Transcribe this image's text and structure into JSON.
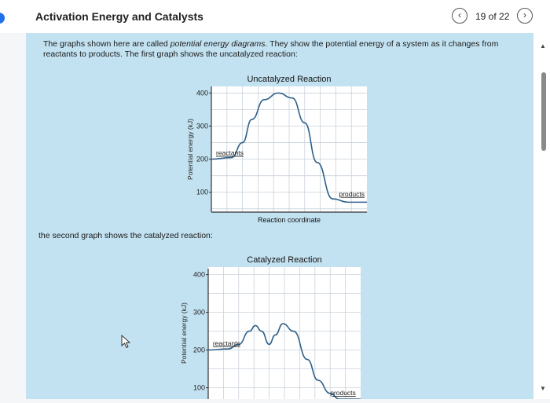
{
  "header": {
    "title": "Activation Energy and Catalysts",
    "page_counter": "19 of 22",
    "prev_icon": "chevron-left-icon",
    "next_icon": "chevron-right-icon"
  },
  "content": {
    "intro_prefix": "The graphs shown here are called ",
    "intro_em": "potential energy diagrams",
    "intro_suffix": ". They show the potential energy of a system as it changes from reactants to products. The first graph shows the uncatalyzed reaction:",
    "second_text": "the second graph shows the catalyzed reaction:"
  },
  "chart_data": [
    {
      "type": "line",
      "title": "Uncatalyzed Reaction",
      "ylabel": "Potential energy (kJ)",
      "xlabel": "Reaction coordinate",
      "y_ticks": [
        100,
        200,
        300,
        400
      ],
      "ylim": [
        40,
        420
      ],
      "xlim": [
        0,
        10
      ],
      "grid": true,
      "line_color": "#2e5f8a",
      "series": [
        {
          "x": [
            0.0,
            1.3,
            2.0,
            2.6,
            3.4,
            4.3,
            5.2,
            6.0,
            6.8,
            7.8,
            8.8,
            10.0
          ],
          "y": [
            200,
            205,
            250,
            320,
            380,
            400,
            385,
            310,
            190,
            80,
            70,
            70
          ]
        }
      ],
      "annotations": [
        {
          "text": "reactants",
          "x": 0.3,
          "y": 212
        },
        {
          "text": "products",
          "x": 8.2,
          "y": 88
        }
      ]
    },
    {
      "type": "line",
      "title": "Catalyzed Reaction",
      "ylabel": "Potential energy (kJ)",
      "xlabel": "",
      "y_ticks": [
        100,
        200,
        300,
        400
      ],
      "ylim": [
        70,
        420
      ],
      "xlim": [
        0,
        10
      ],
      "grid": true,
      "line_color": "#2e5f8a",
      "series": [
        {
          "x": [
            0.0,
            1.3,
            2.0,
            2.7,
            3.1,
            3.5,
            4.0,
            4.4,
            4.9,
            5.6,
            6.5,
            7.2,
            8.0,
            8.6,
            10.0
          ],
          "y": [
            200,
            203,
            215,
            250,
            265,
            250,
            215,
            240,
            270,
            250,
            175,
            120,
            85,
            70,
            70
          ]
        }
      ],
      "annotations": [
        {
          "text": "reactants",
          "x": 0.3,
          "y": 212
        },
        {
          "text": "products",
          "x": 8.0,
          "y": 80
        }
      ]
    }
  ]
}
